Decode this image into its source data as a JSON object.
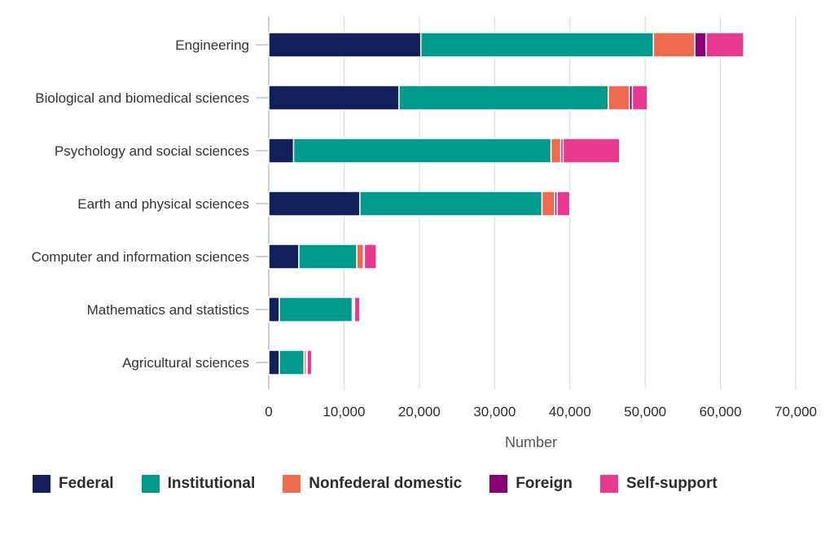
{
  "chart_data": {
    "type": "bar",
    "orientation": "horizontal",
    "stacked": true,
    "title": "",
    "xlabel": "Number",
    "ylabel": "",
    "xlim": [
      0,
      70000
    ],
    "x_ticks": [
      0,
      10000,
      20000,
      30000,
      40000,
      50000,
      60000,
      70000
    ],
    "x_tick_labels": [
      "0",
      "10,000",
      "20,000",
      "30,000",
      "40,000",
      "50,000",
      "60,000",
      "70,000"
    ],
    "grid": true,
    "legend_position": "bottom",
    "categories": [
      "Engineering",
      "Biological and biomedical sciences",
      "Psychology and social sciences",
      "Earth and physical sciences",
      "Computer and information sciences",
      "Mathematics and statistics",
      "Agricultural sciences"
    ],
    "series": [
      {
        "name": "Federal",
        "color": "#121f5b",
        "values": [
          20200,
          17300,
          3300,
          12100,
          4000,
          1400,
          1400
        ]
      },
      {
        "name": "Institutional",
        "color": "#009a8f",
        "values": [
          30900,
          27800,
          34200,
          24200,
          7700,
          9700,
          3300
        ]
      },
      {
        "name": "Nonfederal domestic",
        "color": "#ee6b4d",
        "values": [
          5500,
          2800,
          1300,
          1700,
          900,
          200,
          300
        ]
      },
      {
        "name": "Foreign",
        "color": "#8a0075",
        "values": [
          1500,
          400,
          300,
          300,
          100,
          100,
          100
        ]
      },
      {
        "name": "Self-support",
        "color": "#e8398e",
        "values": [
          5000,
          2000,
          7500,
          1700,
          1600,
          700,
          600
        ]
      }
    ]
  }
}
